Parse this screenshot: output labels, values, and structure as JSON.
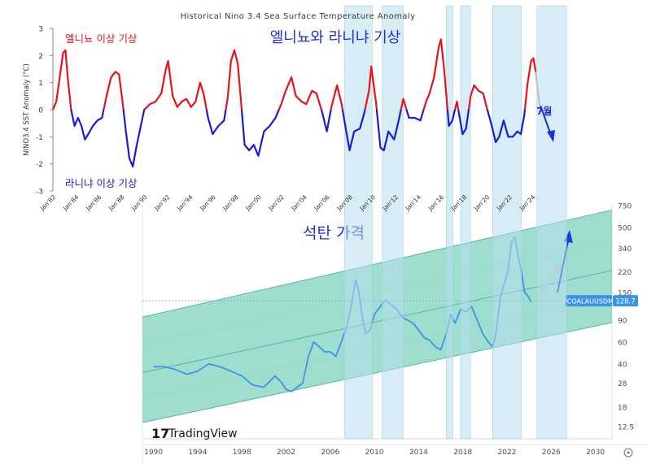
{
  "chart_data": [
    {
      "type": "line",
      "title": "Historical Nino 3.4 Sea Surface Temperature Anomaly",
      "ylabel": "NINO3.4 SST Anomaly (°C)",
      "ylim": [
        -3,
        3
      ],
      "yticks": [
        "-3",
        "-2",
        "-1",
        "0",
        "1",
        "2",
        "3"
      ],
      "xlim": [
        1982,
        2025
      ],
      "xticks": [
        "Jan'82",
        "Jan'84",
        "Jan'86",
        "Jan'88",
        "Jan'90",
        "Jan'92",
        "Jan'94",
        "Jan'96",
        "Jan'98",
        "Jan'00",
        "Jan'02",
        "Jan'04",
        "Jan'06",
        "Jan'08",
        "Jan'10",
        "Jan'12",
        "Jan'14",
        "Jan'16",
        "Jan'18",
        "Jan'20",
        "Jan'22",
        "Jan'24"
      ],
      "annotation_elnino": "엘니뇨 이상 기상",
      "annotation_lanina": "라니냐 이상 기상",
      "annotation_center": "엘니뇨와 라니냐 기상",
      "annotation_month": "7월",
      "positive_color": "#e8121a",
      "negative_color": "#1a1ad6",
      "series": [
        {
          "name": "Nino 3.4 anomaly",
          "x": [
            1982.0,
            1982.3,
            1982.6,
            1982.9,
            1983.1,
            1983.3,
            1983.6,
            1983.9,
            1984.2,
            1984.5,
            1984.8,
            1985.1,
            1985.5,
            1985.9,
            1986.3,
            1986.7,
            1987.1,
            1987.5,
            1987.8,
            1988.1,
            1988.4,
            1988.7,
            1989.0,
            1989.3,
            1989.6,
            1990.0,
            1990.5,
            1991.0,
            1991.5,
            1991.9,
            1992.1,
            1992.5,
            1992.9,
            1993.3,
            1993.7,
            1994.1,
            1994.5,
            1994.9,
            1995.2,
            1995.6,
            1996.0,
            1996.5,
            1997.0,
            1997.3,
            1997.6,
            1997.9,
            1998.2,
            1998.5,
            1998.8,
            1999.2,
            1999.6,
            2000.0,
            2000.5,
            2001.0,
            2001.5,
            2002.0,
            2002.4,
            2002.9,
            2003.3,
            2003.8,
            2004.2,
            2004.7,
            2005.1,
            2005.6,
            2006.0,
            2006.4,
            2006.9,
            2007.3,
            2007.7,
            2008.0,
            2008.4,
            2008.9,
            2009.3,
            2009.7,
            2009.9,
            2010.3,
            2010.7,
            2011.0,
            2011.4,
            2011.9,
            2012.3,
            2012.7,
            2013.2,
            2013.7,
            2014.2,
            2014.7,
            2015.0,
            2015.4,
            2015.8,
            2016.0,
            2016.3,
            2016.7,
            2017.0,
            2017.4,
            2017.9,
            2018.2,
            2018.6,
            2018.9,
            2019.3,
            2019.7,
            2020.0,
            2020.4,
            2020.8,
            2021.1,
            2021.5,
            2021.9,
            2022.3,
            2022.7,
            2023.0,
            2023.3,
            2023.6,
            2023.9,
            2024.1,
            2024.3
          ],
          "y": [
            0.0,
            0.3,
            1.2,
            2.1,
            2.2,
            1.2,
            0.0,
            -0.6,
            -0.3,
            -0.6,
            -1.1,
            -0.9,
            -0.6,
            -0.4,
            -0.3,
            0.5,
            1.2,
            1.4,
            1.3,
            0.3,
            -0.8,
            -1.8,
            -2.1,
            -1.4,
            -0.8,
            0.0,
            0.2,
            0.3,
            0.6,
            1.5,
            1.8,
            0.5,
            0.1,
            0.3,
            0.4,
            0.1,
            0.3,
            1.0,
            0.6,
            -0.3,
            -0.9,
            -0.6,
            -0.4,
            0.4,
            1.8,
            2.2,
            1.7,
            0.2,
            -1.3,
            -1.5,
            -1.3,
            -1.7,
            -0.8,
            -0.6,
            -0.3,
            0.2,
            0.7,
            1.2,
            0.5,
            0.3,
            0.2,
            0.7,
            0.6,
            -0.1,
            -0.8,
            0.1,
            0.9,
            0.2,
            -0.8,
            -1.5,
            -0.8,
            -0.7,
            -0.1,
            0.7,
            1.6,
            0.3,
            -1.4,
            -1.5,
            -0.8,
            -1.1,
            -0.4,
            0.4,
            -0.3,
            -0.3,
            -0.4,
            0.3,
            0.6,
            1.2,
            2.3,
            2.6,
            1.4,
            -0.6,
            -0.4,
            0.3,
            -0.9,
            -0.7,
            0.5,
            0.9,
            0.7,
            0.6,
            0.1,
            -0.5,
            -1.2,
            -1.0,
            -0.4,
            -1.0,
            -1.0,
            -0.8,
            -0.9,
            -0.2,
            1.0,
            1.8,
            1.9,
            1.4
          ]
        }
      ]
    },
    {
      "type": "line",
      "title": "석탄 가격",
      "ticker": "PCOALAUUSDM",
      "last_value": "128.7",
      "watermark": "TradingView",
      "watermark_logo": "17",
      "yscale": "log",
      "ylim": [
        10,
        760
      ],
      "yticks": [
        "750",
        "500",
        "340",
        "220",
        "150",
        "90",
        "60",
        "40",
        "28",
        "18",
        "12.5"
      ],
      "xlim": [
        1989,
        2031.5
      ],
      "xticks": [
        "1990",
        "1994",
        "1998",
        "2002",
        "2006",
        "2010",
        "2014",
        "2018",
        "2022",
        "2026",
        "2030"
      ],
      "channel_color": "#7fd1bf",
      "line_color": "#3a94e8",
      "channel": {
        "x": [
          1989,
          2031.5
        ],
        "lower": [
          13.5,
          86
        ],
        "middle": [
          34,
          225
        ],
        "upper": [
          95,
          690
        ]
      },
      "series": [
        {
          "name": "Coal price",
          "x": [
            1990.0,
            1991.0,
            1992.0,
            1993.0,
            1994.0,
            1995.0,
            1996.0,
            1997.0,
            1998.0,
            1999.0,
            2000.0,
            2001.0,
            2001.5,
            2002.0,
            2002.5,
            2003.0,
            2003.5,
            2004.0,
            2004.5,
            2005.0,
            2005.5,
            2006.0,
            2006.5,
            2007.0,
            2007.5,
            2008.0,
            2008.3,
            2008.6,
            2008.9,
            2009.2,
            2009.6,
            2010.0,
            2010.5,
            2011.0,
            2011.5,
            2012.0,
            2012.5,
            2013.0,
            2013.5,
            2014.0,
            2014.5,
            2015.0,
            2015.5,
            2016.0,
            2016.5,
            2016.9,
            2017.3,
            2017.8,
            2018.3,
            2018.8,
            2019.3,
            2019.8,
            2020.3,
            2020.7,
            2021.0,
            2021.4,
            2021.8,
            2022.1,
            2022.4,
            2022.7,
            2023.0,
            2023.3,
            2023.6,
            2023.9,
            2024.2
          ],
          "y": [
            38,
            38,
            36,
            33,
            35,
            40,
            38,
            35,
            32,
            27,
            26,
            32,
            29,
            25,
            24,
            26,
            28,
            45,
            60,
            55,
            50,
            50,
            46,
            60,
            80,
            130,
            190,
            150,
            95,
            70,
            75,
            100,
            115,
            130,
            120,
            110,
            95,
            90,
            85,
            75,
            65,
            62,
            55,
            52,
            70,
            100,
            85,
            110,
            105,
            115,
            90,
            70,
            60,
            55,
            70,
            140,
            180,
            230,
            380,
            420,
            300,
            220,
            150,
            140,
            125
          ]
        }
      ]
    }
  ]
}
